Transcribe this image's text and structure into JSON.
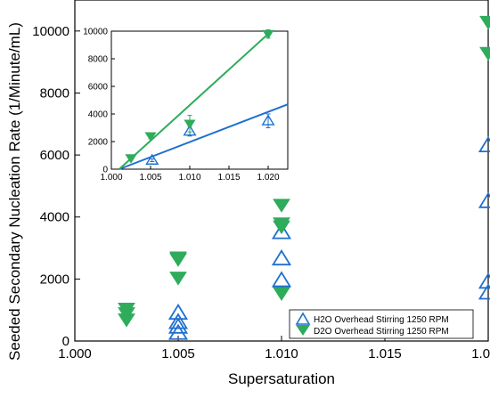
{
  "chart_data": [
    {
      "type": "scatter",
      "panel": "main",
      "xlabel": "Supersaturation",
      "ylabel": "Seeded Secondary Nucleation Rate (1/Minute/mL)",
      "xlim": [
        1.0,
        1.02
      ],
      "ylim": [
        0,
        11000
      ],
      "xticks": [
        1.0,
        1.005,
        1.01,
        1.015,
        1.02
      ],
      "xtick_labels": [
        "1.000",
        "1.005",
        "1.010",
        "1.015",
        "1.020"
      ],
      "yticks": [
        0,
        2000,
        4000,
        6000,
        8000,
        10000
      ],
      "ytick_labels": [
        "0",
        "2000",
        "4000",
        "6000",
        "8000",
        "10000"
      ],
      "legend_position": "bottom-right",
      "series": [
        {
          "name": "H2O Overhead Stirring 1250 RPM",
          "marker": "triangle-up-open",
          "color": "#1f6fd0",
          "points": [
            {
              "x": 1.005,
              "y": 900
            },
            {
              "x": 1.005,
              "y": 600
            },
            {
              "x": 1.005,
              "y": 450
            },
            {
              "x": 1.005,
              "y": 250
            },
            {
              "x": 1.01,
              "y": 3500
            },
            {
              "x": 1.01,
              "y": 2650
            },
            {
              "x": 1.01,
              "y": 1950
            },
            {
              "x": 1.02,
              "y": 6300
            },
            {
              "x": 1.02,
              "y": 4500
            },
            {
              "x": 1.02,
              "y": 1900
            },
            {
              "x": 1.02,
              "y": 1550
            }
          ]
        },
        {
          "name": "D2O Overhead Stirring 1250 RPM",
          "marker": "triangle-down-filled",
          "color": "#2eac5b",
          "points": [
            {
              "x": 1.0025,
              "y": 1050
            },
            {
              "x": 1.0025,
              "y": 900
            },
            {
              "x": 1.0025,
              "y": 700
            },
            {
              "x": 1.005,
              "y": 2700
            },
            {
              "x": 1.005,
              "y": 2650
            },
            {
              "x": 1.005,
              "y": 2050
            },
            {
              "x": 1.01,
              "y": 4400
            },
            {
              "x": 1.01,
              "y": 3800
            },
            {
              "x": 1.01,
              "y": 3700
            },
            {
              "x": 1.01,
              "y": 1550
            },
            {
              "x": 1.02,
              "y": 10300
            },
            {
              "x": 1.02,
              "y": 9300
            }
          ]
        }
      ]
    },
    {
      "type": "scatter",
      "panel": "inset",
      "xlim": [
        1.0,
        1.0225
      ],
      "ylim": [
        0,
        10000
      ],
      "xticks": [
        1.0,
        1.005,
        1.01,
        1.015,
        1.02
      ],
      "xtick_labels": [
        "1.000",
        "1.005",
        "1.010",
        "1.015",
        "1.020"
      ],
      "yticks": [
        0,
        2000,
        4000,
        6000,
        8000,
        10000
      ],
      "ytick_labels": [
        "0",
        "2000",
        "4000",
        "6000",
        "8000",
        "10000"
      ],
      "series": [
        {
          "name": "H2O",
          "marker": "triangle-up-open",
          "color": "#1f6fd0",
          "points": [
            {
              "x": 1.0052,
              "y": 650,
              "err": 100
            },
            {
              "x": 1.01,
              "y": 2750,
              "err": 350
            },
            {
              "x": 1.02,
              "y": 3500,
              "err": 500
            }
          ],
          "fit": {
            "x": [
              1.001,
              1.0225
            ],
            "y": [
              0,
              4700
            ]
          }
        },
        {
          "name": "D2O",
          "marker": "triangle-down-filled",
          "color": "#2eac5b",
          "points": [
            {
              "x": 1.0025,
              "y": 800,
              "err": 150
            },
            {
              "x": 1.005,
              "y": 2400,
              "err": 200
            },
            {
              "x": 1.01,
              "y": 3300,
              "err": 600
            },
            {
              "x": 1.02,
              "y": 9800,
              "err": 300
            }
          ],
          "fit": {
            "x": [
              1.001,
              1.02
            ],
            "y": [
              0,
              9800
            ]
          }
        }
      ]
    }
  ]
}
